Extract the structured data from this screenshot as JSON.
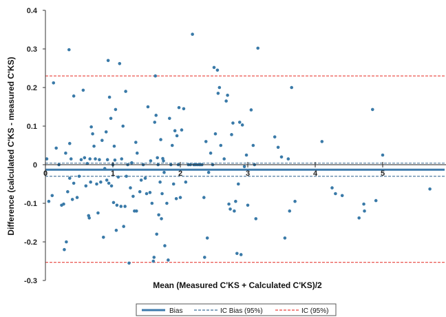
{
  "chart_data": {
    "type": "scatter",
    "xlabel": "Mean (Measured C'KS + Calculated C'KS)/2",
    "ylabel": "Difference (calculated C'KS - measured C'KS)",
    "xlim": [
      0,
      6.0
    ],
    "ylim": [
      -0.3,
      0.4
    ],
    "x_ticks": [
      0,
      1,
      2,
      3,
      4,
      5
    ],
    "x_tick_labels": [
      "0",
      "1",
      "2",
      "3",
      "4",
      "5"
    ],
    "y_ticks": [
      -0.3,
      -0.2,
      -0.1,
      0,
      0.1,
      0.2,
      0.3,
      0.4
    ],
    "y_tick_labels": [
      "-0.3",
      "-0.2",
      "-0.1",
      "0",
      "0.1",
      "0.2",
      "0.3",
      "0.4"
    ],
    "grid": false,
    "legend_placement": "bottom",
    "colors": {
      "points": "#3a7aa8",
      "bias": "#3d7aac",
      "ic_bias": "#3d6e96",
      "ic": "#e8403a"
    },
    "reference_lines": [
      {
        "name": "Bias",
        "y": -0.013,
        "style": "solid"
      },
      {
        "name": "IC Bias (95%)",
        "y": 0.004,
        "style": "dashed"
      },
      {
        "name": "IC Bias (95%)",
        "y": -0.03,
        "style": "dashed"
      },
      {
        "name": "IC (95%)",
        "y": 0.23,
        "style": "dashed"
      },
      {
        "name": "IC (95%)",
        "y": -0.253,
        "style": "dashed"
      }
    ],
    "legend": [
      "Bias",
      "IC Bias (95%)",
      "IC (95%)"
    ],
    "points": [
      [
        0.02,
        0.015
      ],
      [
        0.05,
        -0.095
      ],
      [
        0.1,
        -0.08
      ],
      [
        0.12,
        0.212
      ],
      [
        0.16,
        0.043
      ],
      [
        0.2,
        0.0
      ],
      [
        0.24,
        -0.105
      ],
      [
        0.27,
        -0.102
      ],
      [
        0.3,
        0.03
      ],
      [
        0.28,
        -0.22
      ],
      [
        0.31,
        -0.2
      ],
      [
        0.33,
        -0.07
      ],
      [
        0.35,
        0.298
      ],
      [
        0.36,
        0.055
      ],
      [
        0.36,
        -0.035
      ],
      [
        0.38,
        0.015
      ],
      [
        0.4,
        -0.09
      ],
      [
        0.42,
        -0.048
      ],
      [
        0.42,
        0.178
      ],
      [
        0.47,
        -0.085
      ],
      [
        0.5,
        -0.03
      ],
      [
        0.53,
        0.013
      ],
      [
        0.56,
        0.193
      ],
      [
        0.58,
        0.018
      ],
      [
        0.6,
        -0.055
      ],
      [
        0.62,
        0.003
      ],
      [
        0.64,
        -0.132
      ],
      [
        0.65,
        -0.138
      ],
      [
        0.66,
        0.015
      ],
      [
        0.67,
        -0.045
      ],
      [
        0.68,
        0.098
      ],
      [
        0.7,
        0.08
      ],
      [
        0.72,
        0.048
      ],
      [
        0.74,
        0.015
      ],
      [
        0.76,
        -0.05
      ],
      [
        0.78,
        -0.125
      ],
      [
        0.8,
        0.013
      ],
      [
        0.82,
        -0.045
      ],
      [
        0.84,
        0.063
      ],
      [
        0.86,
        -0.188
      ],
      [
        0.88,
        -0.01
      ],
      [
        0.9,
        0.085
      ],
      [
        0.91,
        -0.04
      ],
      [
        0.92,
        0.013
      ],
      [
        0.93,
        0.27
      ],
      [
        0.94,
        -0.048
      ],
      [
        0.95,
        0.175
      ],
      [
        0.97,
        0.12
      ],
      [
        0.98,
        -0.055
      ],
      [
        1.0,
        0.0
      ],
      [
        1.01,
        -0.098
      ],
      [
        1.02,
        0.048
      ],
      [
        1.03,
        0.012
      ],
      [
        1.04,
        0.143
      ],
      [
        1.05,
        -0.17
      ],
      [
        1.06,
        -0.105
      ],
      [
        1.08,
        -0.032
      ],
      [
        1.1,
        0.262
      ],
      [
        1.12,
        -0.108
      ],
      [
        1.13,
        0.015
      ],
      [
        1.15,
        0.1
      ],
      [
        1.16,
        -0.16
      ],
      [
        1.18,
        -0.108
      ],
      [
        1.19,
        0.19
      ],
      [
        1.2,
        -0.03
      ],
      [
        1.22,
        0.0
      ],
      [
        1.24,
        -0.255
      ],
      [
        1.26,
        -0.06
      ],
      [
        1.28,
        0.005
      ],
      [
        1.3,
        -0.082
      ],
      [
        1.32,
        -0.12
      ],
      [
        1.34,
        0.058
      ],
      [
        1.35,
        -0.12
      ],
      [
        1.36,
        0.03
      ],
      [
        1.4,
        -0.07
      ],
      [
        1.42,
        -0.04
      ],
      [
        1.45,
        0.0
      ],
      [
        1.48,
        -0.035
      ],
      [
        1.5,
        -0.075
      ],
      [
        1.52,
        0.15
      ],
      [
        1.55,
        -0.072
      ],
      [
        1.56,
        0.01
      ],
      [
        1.58,
        -0.1
      ],
      [
        1.6,
        -0.25
      ],
      [
        1.61,
        -0.24
      ],
      [
        1.62,
        0.11
      ],
      [
        1.63,
        0.23
      ],
      [
        1.64,
        0.128
      ],
      [
        1.65,
        -0.18
      ],
      [
        1.66,
        0.018
      ],
      [
        1.67,
        0.0
      ],
      [
        1.68,
        -0.13
      ],
      [
        1.7,
        -0.045
      ],
      [
        1.71,
        0.065
      ],
      [
        1.72,
        -0.14
      ],
      [
        1.73,
        -0.075
      ],
      [
        1.74,
        0.016
      ],
      [
        1.75,
        0.01
      ],
      [
        1.76,
        -0.02
      ],
      [
        1.77,
        -0.21
      ],
      [
        1.8,
        -0.1
      ],
      [
        1.82,
        -0.247
      ],
      [
        1.84,
        0.12
      ],
      [
        1.86,
        0.0
      ],
      [
        1.88,
        0.05
      ],
      [
        1.9,
        -0.05
      ],
      [
        1.92,
        0.088
      ],
      [
        1.94,
        -0.088
      ],
      [
        1.95,
        0.075
      ],
      [
        1.97,
        0.0
      ],
      [
        1.98,
        0.148
      ],
      [
        2.0,
        -0.085
      ],
      [
        2.02,
        0.09
      ],
      [
        2.05,
        0.145
      ],
      [
        2.08,
        -0.045
      ],
      [
        2.12,
        0.0
      ],
      [
        2.15,
        0.0
      ],
      [
        2.18,
        0.338
      ],
      [
        2.2,
        0.0
      ],
      [
        2.22,
        0.0
      ],
      [
        2.25,
        0.0
      ],
      [
        2.28,
        0.0
      ],
      [
        2.3,
        0.0
      ],
      [
        2.32,
        0.0
      ],
      [
        2.35,
        -0.085
      ],
      [
        2.36,
        -0.24
      ],
      [
        2.38,
        0.06
      ],
      [
        2.4,
        -0.19
      ],
      [
        2.42,
        -0.02
      ],
      [
        2.45,
        0.03
      ],
      [
        2.48,
        0.0
      ],
      [
        2.5,
        0.252
      ],
      [
        2.52,
        0.08
      ],
      [
        2.55,
        0.245
      ],
      [
        2.56,
        0.185
      ],
      [
        2.58,
        0.2
      ],
      [
        2.6,
        0.05
      ],
      [
        2.65,
        0.015
      ],
      [
        2.68,
        0.165
      ],
      [
        2.7,
        0.18
      ],
      [
        2.72,
        -0.102
      ],
      [
        2.74,
        -0.115
      ],
      [
        2.76,
        0.078
      ],
      [
        2.78,
        0.108
      ],
      [
        2.8,
        -0.12
      ],
      [
        2.82,
        -0.095
      ],
      [
        2.84,
        -0.23
      ],
      [
        2.86,
        -0.05
      ],
      [
        2.88,
        0.11
      ],
      [
        2.9,
        -0.233
      ],
      [
        2.92,
        0.103
      ],
      [
        2.95,
        -0.005
      ],
      [
        2.98,
        0.025
      ],
      [
        3.0,
        -0.105
      ],
      [
        3.05,
        0.142
      ],
      [
        3.08,
        0.05
      ],
      [
        3.1,
        0.0
      ],
      [
        3.12,
        -0.14
      ],
      [
        3.15,
        0.302
      ],
      [
        3.4,
        0.072
      ],
      [
        3.45,
        0.045
      ],
      [
        3.5,
        0.02
      ],
      [
        3.55,
        -0.19
      ],
      [
        3.6,
        0.015
      ],
      [
        3.62,
        -0.12
      ],
      [
        3.65,
        0.2
      ],
      [
        3.7,
        -0.095
      ],
      [
        4.1,
        0.06
      ],
      [
        4.25,
        -0.06
      ],
      [
        4.3,
        -0.075
      ],
      [
        4.4,
        -0.08
      ],
      [
        4.65,
        -0.138
      ],
      [
        4.72,
        -0.102
      ],
      [
        4.73,
        -0.12
      ],
      [
        4.85,
        0.143
      ],
      [
        4.9,
        -0.093
      ],
      [
        5.0,
        0.025
      ],
      [
        5.7,
        -0.063
      ]
    ]
  }
}
